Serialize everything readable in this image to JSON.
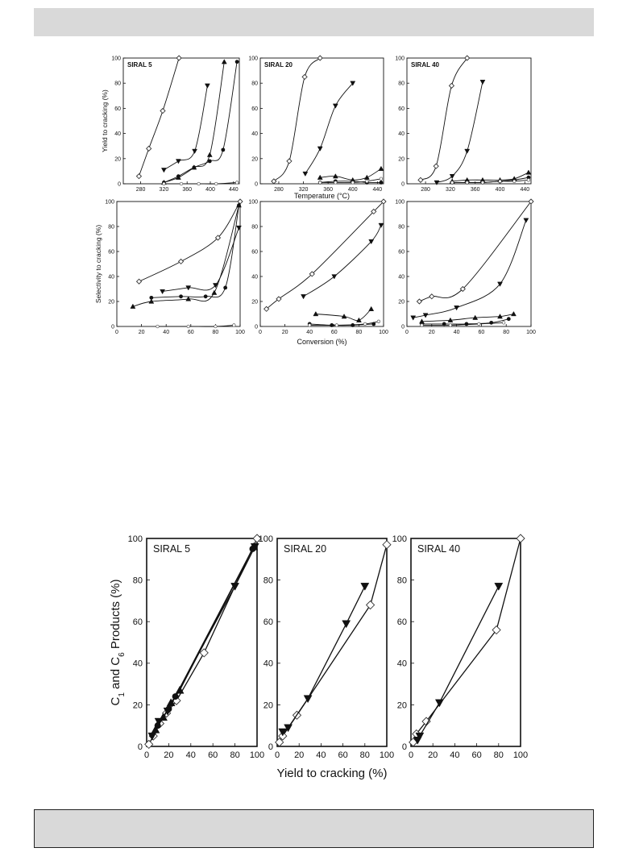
{
  "colors": {
    "band": "#d9d9d9",
    "ink": "#111111"
  },
  "chart_data": [
    {
      "type": "line",
      "group": "fig-a-top",
      "title": "SIRAL 5",
      "ylabel": "Yield to cracking (%)",
      "xlabel": "",
      "xlim": [
        250,
        450
      ],
      "ylim": [
        0,
        100
      ],
      "xticks": [
        280,
        320,
        360,
        400,
        440
      ],
      "yticks": [
        0,
        20,
        40,
        60,
        80,
        100
      ],
      "series": [
        {
          "marker": "open-diamond",
          "points": [
            [
              277,
              6
            ],
            [
              294,
              28
            ],
            [
              318,
              58
            ],
            [
              346,
              100
            ]
          ]
        },
        {
          "marker": "down-triangle",
          "points": [
            [
              320,
              11
            ],
            [
              345,
              18
            ],
            [
              373,
              26
            ],
            [
              395,
              78
            ]
          ]
        },
        {
          "marker": "up-triangle",
          "points": [
            [
              320,
              1
            ],
            [
              345,
              5
            ],
            [
              372,
              13
            ],
            [
              399,
              23
            ],
            [
              424,
              97
            ]
          ]
        },
        {
          "marker": "filled-circle",
          "points": [
            [
              320,
              1
            ],
            [
              345,
              6
            ],
            [
              372,
              13
            ],
            [
              399,
              18
            ],
            [
              422,
              27
            ],
            [
              446,
              97
            ]
          ]
        },
        {
          "marker": "small-open",
          "points": [
            [
              320,
              0
            ],
            [
              350,
              0
            ],
            [
              380,
              0
            ],
            [
              410,
              0
            ],
            [
              446,
              1
            ]
          ]
        }
      ]
    },
    {
      "type": "line",
      "group": "fig-a-top",
      "title": "SIRAL 20",
      "ylabel": "",
      "xlabel": "Temperature (°C)",
      "xlim": [
        250,
        450
      ],
      "ylim": [
        0,
        100
      ],
      "xticks": [
        280,
        320,
        360,
        400,
        440
      ],
      "yticks": [
        0,
        20,
        40,
        60,
        80,
        100
      ],
      "series": [
        {
          "marker": "open-diamond",
          "points": [
            [
              272,
              2
            ],
            [
              297,
              18
            ],
            [
              322,
              85
            ],
            [
              347,
              100
            ]
          ]
        },
        {
          "marker": "down-triangle",
          "points": [
            [
              323,
              8
            ],
            [
              347,
              28
            ],
            [
              372,
              62
            ],
            [
              400,
              80
            ]
          ]
        },
        {
          "marker": "up-triangle",
          "points": [
            [
              347,
              5
            ],
            [
              372,
              6
            ],
            [
              400,
              3
            ],
            [
              423,
              5
            ],
            [
              446,
              12
            ]
          ]
        },
        {
          "marker": "filled-circle",
          "points": [
            [
              347,
              1
            ],
            [
              372,
              2
            ],
            [
              400,
              2
            ],
            [
              423,
              1
            ],
            [
              446,
              1
            ]
          ]
        },
        {
          "marker": "small-open",
          "points": [
            [
              347,
              1
            ],
            [
              372,
              1
            ],
            [
              400,
              1
            ],
            [
              423,
              2
            ],
            [
              446,
              4
            ]
          ]
        }
      ]
    },
    {
      "type": "line",
      "group": "fig-a-top",
      "title": "SIRAL 40",
      "ylabel": "",
      "xlabel": "",
      "xlim": [
        250,
        450
      ],
      "ylim": [
        0,
        100
      ],
      "xticks": [
        280,
        320,
        360,
        400,
        440
      ],
      "yticks": [
        0,
        20,
        40,
        60,
        80,
        100
      ],
      "series": [
        {
          "marker": "open-diamond",
          "points": [
            [
              272,
              3
            ],
            [
              297,
              14
            ],
            [
              322,
              78
            ],
            [
              347,
              100
            ]
          ]
        },
        {
          "marker": "down-triangle",
          "points": [
            [
              298,
              1
            ],
            [
              323,
              6
            ],
            [
              347,
              26
            ],
            [
              372,
              81
            ]
          ]
        },
        {
          "marker": "up-triangle",
          "points": [
            [
              323,
              2
            ],
            [
              347,
              3
            ],
            [
              372,
              3
            ],
            [
              400,
              3
            ],
            [
              423,
              4
            ],
            [
              446,
              9
            ]
          ]
        },
        {
          "marker": "filled-circle",
          "points": [
            [
              323,
              1
            ],
            [
              347,
              1
            ],
            [
              372,
              1
            ],
            [
              400,
              2
            ],
            [
              423,
              3
            ],
            [
              446,
              5
            ]
          ]
        },
        {
          "marker": "small-open",
          "points": [
            [
              323,
              1
            ],
            [
              347,
              1
            ],
            [
              372,
              1
            ],
            [
              400,
              2
            ],
            [
              423,
              2
            ],
            [
              446,
              3
            ]
          ]
        }
      ]
    },
    {
      "type": "line",
      "group": "fig-a-bottom",
      "title": "",
      "ylabel": "Selectivity to cracking (%)",
      "xlabel": "",
      "xlim": [
        0,
        100
      ],
      "ylim": [
        0,
        100
      ],
      "xticks": [
        0,
        20,
        40,
        60,
        80,
        100
      ],
      "yticks": [
        0,
        20,
        40,
        60,
        80,
        100
      ],
      "series": [
        {
          "marker": "open-diamond",
          "points": [
            [
              18,
              36
            ],
            [
              52,
              52
            ],
            [
              82,
              71
            ],
            [
              100,
              100
            ]
          ]
        },
        {
          "marker": "down-triangle",
          "points": [
            [
              37,
              28
            ],
            [
              58,
              31
            ],
            [
              80,
              33
            ],
            [
              99,
              79
            ]
          ]
        },
        {
          "marker": "up-triangle",
          "points": [
            [
              13,
              16
            ],
            [
              28,
              20
            ],
            [
              58,
              22
            ],
            [
              79,
              27
            ],
            [
              99,
              97
            ]
          ]
        },
        {
          "marker": "filled-circle",
          "points": [
            [
              28,
              23
            ],
            [
              52,
              24
            ],
            [
              72,
              24
            ],
            [
              88,
              31
            ],
            [
              99,
              97
            ]
          ]
        },
        {
          "marker": "small-open",
          "points": [
            [
              33,
              0
            ],
            [
              58,
              0
            ],
            [
              80,
              0
            ],
            [
              95,
              1
            ]
          ]
        }
      ]
    },
    {
      "type": "line",
      "group": "fig-a-bottom",
      "title": "",
      "ylabel": "",
      "xlabel": "Conversion (%)",
      "xlim": [
        0,
        100
      ],
      "ylim": [
        0,
        100
      ],
      "xticks": [
        0,
        20,
        40,
        60,
        80,
        100
      ],
      "yticks": [
        0,
        20,
        40,
        60,
        80,
        100
      ],
      "series": [
        {
          "marker": "open-diamond",
          "points": [
            [
              5,
              14
            ],
            [
              15,
              22
            ],
            [
              42,
              42
            ],
            [
              92,
              92
            ],
            [
              100,
              100
            ]
          ]
        },
        {
          "marker": "down-triangle",
          "points": [
            [
              35,
              24
            ],
            [
              60,
              40
            ],
            [
              90,
              68
            ],
            [
              98,
              81
            ]
          ]
        },
        {
          "marker": "up-triangle",
          "points": [
            [
              45,
              10
            ],
            [
              68,
              8
            ],
            [
              80,
              5
            ],
            [
              90,
              14
            ]
          ]
        },
        {
          "marker": "filled-circle",
          "points": [
            [
              40,
              2
            ],
            [
              58,
              1
            ],
            [
              75,
              1
            ],
            [
              92,
              2
            ]
          ]
        },
        {
          "marker": "small-open",
          "points": [
            [
              40,
              1
            ],
            [
              62,
              1
            ],
            [
              85,
              2
            ],
            [
              96,
              4
            ]
          ]
        }
      ]
    },
    {
      "type": "line",
      "group": "fig-a-bottom",
      "title": "",
      "ylabel": "",
      "xlabel": "",
      "xlim": [
        0,
        100
      ],
      "ylim": [
        0,
        100
      ],
      "xticks": [
        0,
        20,
        40,
        60,
        80,
        100
      ],
      "yticks": [
        0,
        20,
        40,
        60,
        80,
        100
      ],
      "series": [
        {
          "marker": "open-diamond",
          "points": [
            [
              10,
              20
            ],
            [
              20,
              24
            ],
            [
              45,
              30
            ],
            [
              100,
              100
            ]
          ]
        },
        {
          "marker": "down-triangle",
          "points": [
            [
              5,
              7
            ],
            [
              15,
              9
            ],
            [
              40,
              15
            ],
            [
              75,
              34
            ],
            [
              96,
              85
            ]
          ]
        },
        {
          "marker": "up-triangle",
          "points": [
            [
              12,
              4
            ],
            [
              35,
              5
            ],
            [
              55,
              7
            ],
            [
              75,
              8
            ],
            [
              86,
              10
            ]
          ]
        },
        {
          "marker": "filled-circle",
          "points": [
            [
              12,
              2
            ],
            [
              30,
              2
            ],
            [
              48,
              2
            ],
            [
              68,
              3
            ],
            [
              82,
              6
            ]
          ]
        },
        {
          "marker": "small-open",
          "points": [
            [
              12,
              1
            ],
            [
              35,
              1
            ],
            [
              58,
              2
            ],
            [
              78,
              3
            ]
          ]
        }
      ]
    },
    {
      "type": "line",
      "group": "fig-b",
      "title": "SIRAL 5",
      "ylabel": "C1 and C6 Products (%)",
      "xlabel": "",
      "xlim": [
        0,
        100
      ],
      "ylim": [
        0,
        100
      ],
      "xticks": [
        0,
        20,
        40,
        60,
        80,
        100
      ],
      "yticks": [
        0,
        20,
        40,
        60,
        80,
        100
      ],
      "series": [
        {
          "marker": "open-diamond",
          "points": [
            [
              2,
              1
            ],
            [
              6,
              5
            ],
            [
              12,
              11
            ],
            [
              18,
              16
            ],
            [
              27,
              22
            ],
            [
              52,
              45
            ],
            [
              100,
              100
            ]
          ]
        },
        {
          "marker": "down-triangle",
          "points": [
            [
              5,
              5
            ],
            [
              11,
              12
            ],
            [
              19,
              17
            ],
            [
              80,
              77
            ],
            [
              98,
              96
            ]
          ]
        },
        {
          "marker": "up-triangle",
          "points": [
            [
              8,
              8
            ],
            [
              15,
              14
            ],
            [
              22,
              21
            ],
            [
              30,
              27
            ],
            [
              97,
              96
            ]
          ]
        },
        {
          "marker": "filled-circle",
          "points": [
            [
              10,
              10
            ],
            [
              20,
              18
            ],
            [
              26,
              24
            ],
            [
              96,
              95
            ]
          ]
        }
      ]
    },
    {
      "type": "line",
      "group": "fig-b",
      "title": "SIRAL 20",
      "ylabel": "",
      "xlabel": "Yield to cracking (%)",
      "xlim": [
        0,
        100
      ],
      "ylim": [
        0,
        100
      ],
      "xticks": [
        0,
        20,
        40,
        60,
        80,
        100
      ],
      "yticks": [
        0,
        20,
        40,
        60,
        80,
        100
      ],
      "series": [
        {
          "marker": "open-diamond",
          "points": [
            [
              2,
              2
            ],
            [
              5,
              5
            ],
            [
              18,
              15
            ],
            [
              85,
              68
            ],
            [
              100,
              97
            ]
          ]
        },
        {
          "marker": "down-triangle",
          "points": [
            [
              5,
              7
            ],
            [
              10,
              9
            ],
            [
              28,
              23
            ],
            [
              63,
              59
            ],
            [
              80,
              77
            ]
          ]
        }
      ]
    },
    {
      "type": "line",
      "group": "fig-b",
      "title": "SIRAL 40",
      "ylabel": "",
      "xlabel": "",
      "xlim": [
        0,
        100
      ],
      "ylim": [
        0,
        100
      ],
      "xticks": [
        0,
        20,
        40,
        60,
        80,
        100
      ],
      "yticks": [
        0,
        20,
        40,
        60,
        80,
        100
      ],
      "series": [
        {
          "marker": "open-diamond",
          "points": [
            [
              2,
              2
            ],
            [
              5,
              6
            ],
            [
              14,
              12
            ],
            [
              78,
              56
            ],
            [
              100,
              100
            ]
          ]
        },
        {
          "marker": "down-triangle",
          "points": [
            [
              6,
              3
            ],
            [
              8,
              5
            ],
            [
              26,
              21
            ],
            [
              80,
              77
            ]
          ]
        }
      ]
    }
  ]
}
